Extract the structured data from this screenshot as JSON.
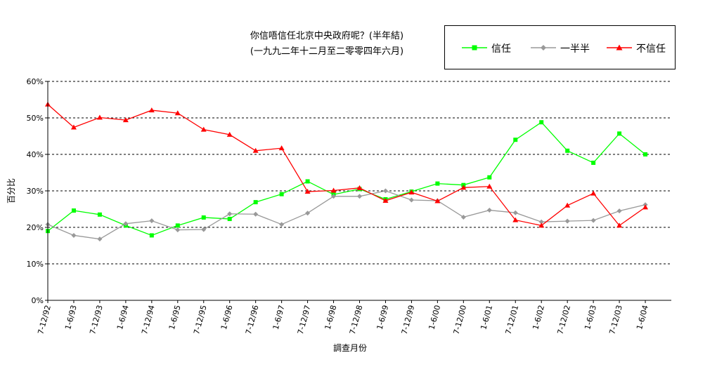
{
  "chart_data": {
    "type": "line",
    "title": "你信唔信任北京中央政府呢？(半年結)",
    "subtitle": "(一九九二年十二月至二零零四年六月)",
    "xlabel": "調查月份",
    "ylabel": "百分比",
    "ylim": [
      0,
      60
    ],
    "yticks": [
      "0%",
      "10%",
      "20%",
      "30%",
      "40%",
      "50%",
      "60%"
    ],
    "grid": true,
    "legend": "top-right",
    "categories": [
      "7-12/92",
      "1-6/93",
      "7-12/93",
      "1-6/94",
      "7-12/94",
      "1-6/95",
      "7-12/95",
      "1-6/96",
      "7-12/96",
      "1-6/97",
      "7-12/97",
      "1-6/98",
      "7-12/98",
      "1-6/99",
      "7-12/99",
      "1-6/00",
      "7-12/00",
      "1-6/01",
      "7-12/01",
      "1-6/02",
      "7-12/02",
      "1-6/03",
      "7-12/03",
      "1-6/04"
    ],
    "series": [
      {
        "name": "信任",
        "color": "#00ff00",
        "marker": "square",
        "values": [
          19,
          24.6,
          23.5,
          20.5,
          17.8,
          20.5,
          22.7,
          22.3,
          26.9,
          29.1,
          32.6,
          29,
          30.5,
          27.7,
          29.8,
          32,
          31.6,
          33.7,
          44,
          48.8,
          41,
          37.7,
          45.7,
          40
        ]
      },
      {
        "name": "一半半",
        "color": "#999999",
        "marker": "diamond",
        "values": [
          20.8,
          17.8,
          16.8,
          21,
          21.8,
          19.3,
          19.4,
          23.7,
          23.6,
          20.8,
          23.9,
          28.5,
          28.5,
          30,
          27.5,
          27.3,
          22.8,
          24.7,
          24,
          21.5,
          21.7,
          21.9,
          24.5,
          26.2
        ]
      },
      {
        "name": "不信任",
        "color": "#ff0000",
        "marker": "triangle",
        "values": [
          53.7,
          47.4,
          50.1,
          49.4,
          52.1,
          51.3,
          46.8,
          45.4,
          41,
          41.7,
          29.8,
          30.1,
          30.8,
          27.3,
          29.6,
          27.2,
          30.9,
          31.2,
          22,
          20.5,
          26,
          29.3,
          20.5,
          25.5
        ]
      }
    ]
  }
}
